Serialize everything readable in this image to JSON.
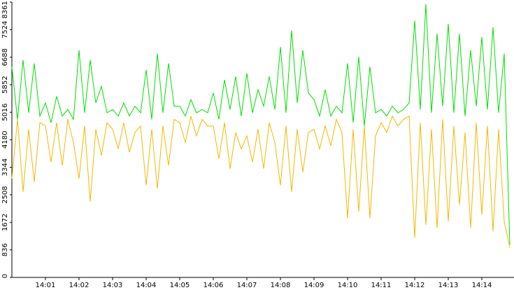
{
  "chart_data": {
    "type": "line",
    "categories": [
      null,
      null,
      null,
      null,
      null,
      null,
      "14:01",
      null,
      null,
      null,
      null,
      null,
      "14:02",
      null,
      null,
      null,
      null,
      null,
      "14:03",
      null,
      null,
      null,
      null,
      null,
      "14:04",
      null,
      null,
      null,
      null,
      null,
      "14:05",
      null,
      null,
      null,
      null,
      null,
      "14:06",
      null,
      null,
      null,
      null,
      null,
      "14:07",
      null,
      null,
      null,
      null,
      null,
      "14:08",
      null,
      null,
      null,
      null,
      null,
      "14:09",
      null,
      null,
      null,
      null,
      null,
      "14:10",
      null,
      null,
      null,
      null,
      null,
      "14:11",
      null,
      null,
      null,
      null,
      null,
      "14:12",
      null,
      null,
      null,
      null,
      null,
      "14:13",
      null,
      null,
      null,
      null,
      null,
      "14:14",
      null,
      null,
      null,
      null,
      null
    ],
    "series": [
      {
        "color": "#00e000",
        "values": [
          6400,
          4800,
          6600,
          5000,
          6500,
          4900,
          5300,
          4700,
          5500,
          4900,
          5100,
          4800,
          6900,
          5000,
          6600,
          5300,
          5800,
          5000,
          5100,
          4900,
          5300,
          4900,
          5200,
          5000,
          6300,
          4800,
          6800,
          5000,
          6500,
          5200,
          5200,
          4900,
          5400,
          5000,
          5100,
          5000,
          5600,
          4800,
          6000,
          5100,
          6100,
          4900,
          6200,
          5000,
          5700,
          5200,
          6100,
          5100,
          7000,
          5000,
          7500,
          5300,
          6900,
          5600,
          5400,
          4900,
          5700,
          4900,
          5200,
          5000,
          6500,
          4700,
          6700,
          4600,
          6400,
          5000,
          5100,
          4900,
          5200,
          5000,
          5100,
          5300,
          7800,
          5100,
          8300,
          5000,
          7400,
          5200,
          7700,
          5000,
          7400,
          4900,
          6900,
          5200,
          7300,
          5100,
          7600,
          5000,
          6800,
          1000
        ]
      },
      {
        "color": "#f5b800",
        "values": [
          3000,
          4800,
          2600,
          4500,
          2900,
          4700,
          4600,
          3500,
          4700,
          3400,
          4800,
          4100,
          3000,
          4600,
          2300,
          4500,
          3700,
          4700,
          4500,
          3900,
          4700,
          3800,
          4400,
          4600,
          2800,
          4500,
          2700,
          4600,
          3400,
          4800,
          4700,
          4100,
          4900,
          4300,
          4800,
          4600,
          4600,
          3600,
          4700,
          3300,
          4400,
          3900,
          4300,
          3500,
          4500,
          3300,
          4700,
          4100,
          2800,
          4600,
          2600,
          4500,
          3200,
          4400,
          4500,
          3900,
          4600,
          4000,
          4800,
          4400,
          1800,
          4500,
          2000,
          4600,
          1800,
          4300,
          4700,
          4400,
          4900,
          4600,
          4800,
          4900,
          1200,
          4700,
          1600,
          4500,
          1500,
          4800,
          1700,
          4600,
          2200,
          4400,
          1500,
          4700,
          1900,
          4600,
          1400,
          4500,
          1700,
          900
        ]
      }
    ],
    "ylim": [
      0,
      8361
    ],
    "yticks": [
      0,
      836,
      1672,
      2508,
      3344,
      4180,
      5016,
      5852,
      6688,
      7524,
      8361
    ]
  }
}
